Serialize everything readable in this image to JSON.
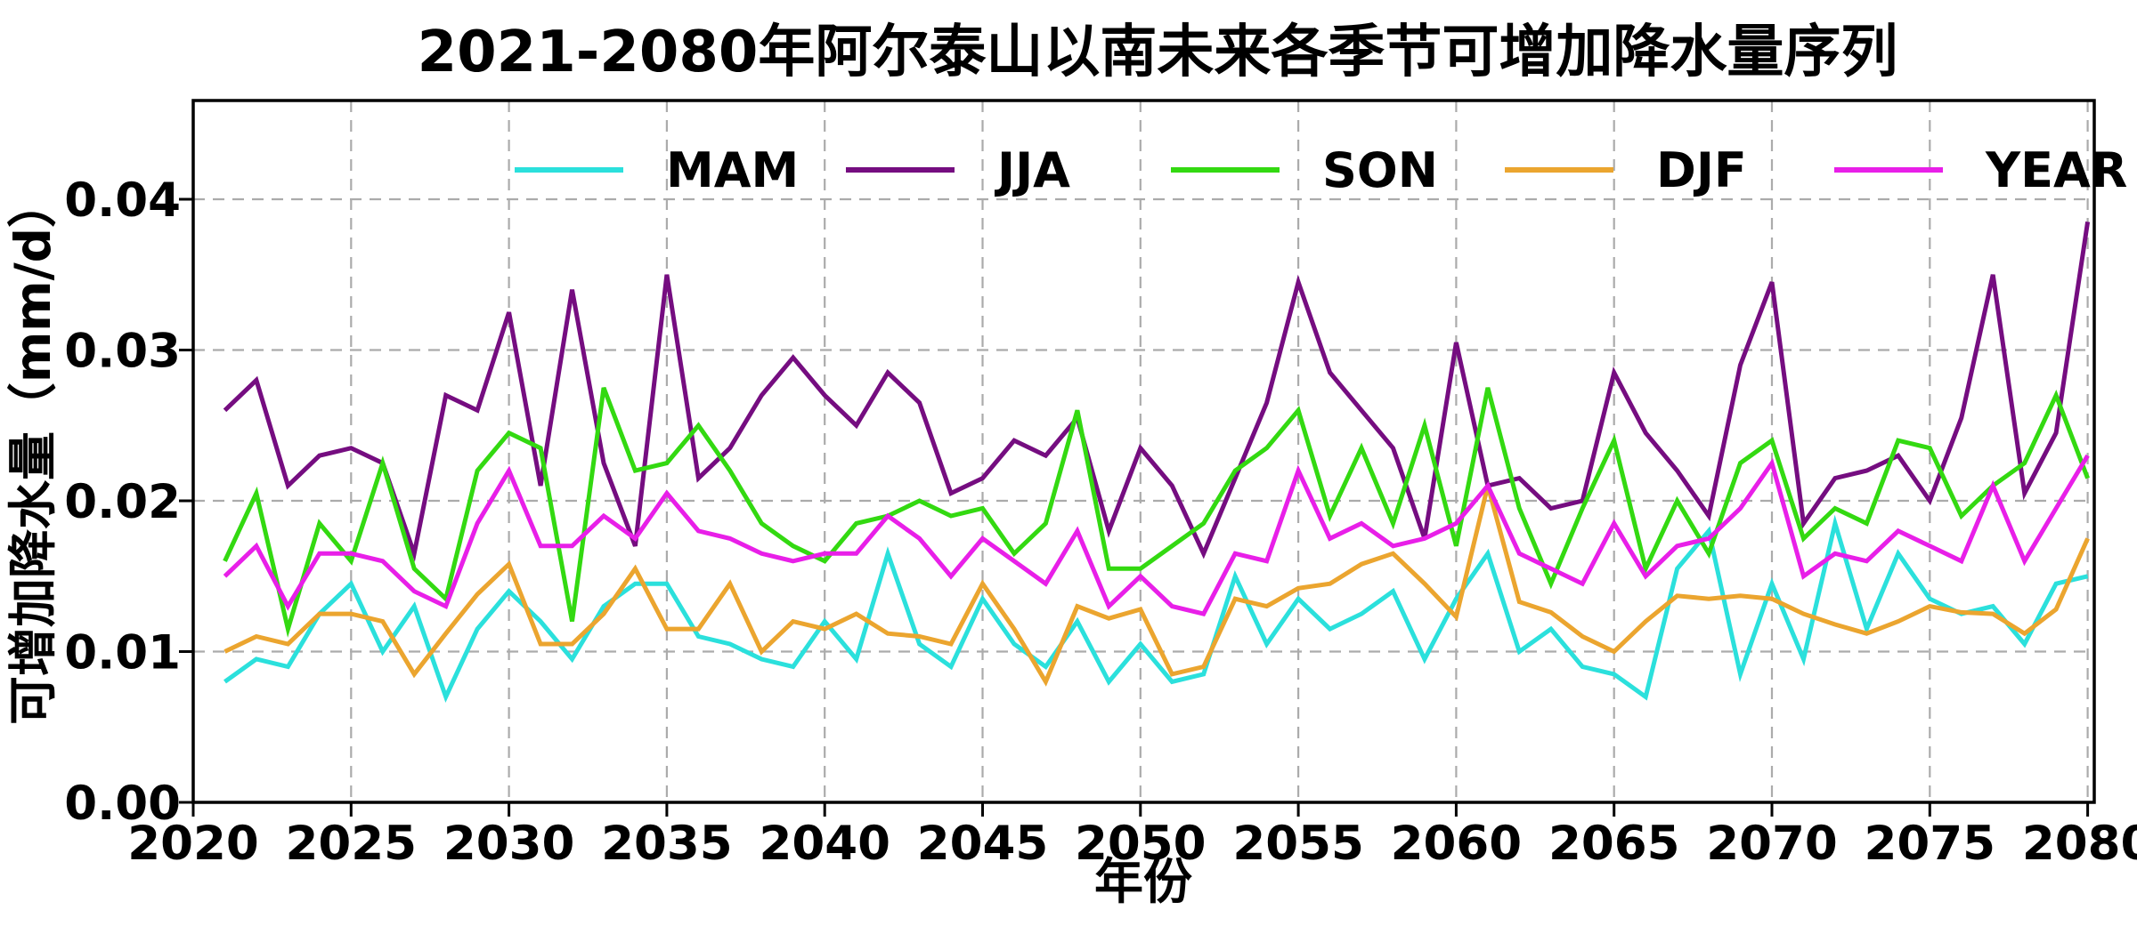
{
  "title": "2021-2080年阿尔泰山以南未来各季节可增加降水量序列",
  "axes": {
    "xlabel": "年份",
    "ylabel": "可增加降水量（mm/d）"
  },
  "colors": {
    "grid": "#ababab",
    "frame": "#000000",
    "background": "#ffffff"
  },
  "chart_data": {
    "type": "line",
    "title": "2021-2080年阿尔泰山以南未来各季节可增加降水量序列",
    "xlabel": "年份",
    "ylabel": "可增加降水量（mm/d）",
    "grid": "dashed",
    "legend_position": "top-inside-horizontal",
    "xlim": [
      2020,
      2080.3
    ],
    "ylim": [
      0,
      0.0466
    ],
    "xticks": [
      2020,
      2025,
      2030,
      2035,
      2040,
      2045,
      2050,
      2055,
      2060,
      2065,
      2070,
      2075,
      2080
    ],
    "ytick_values": [
      0.0,
      0.01,
      0.02,
      0.03,
      0.04
    ],
    "ytick_labels": [
      "0.00",
      "0.01",
      "0.02",
      "0.03",
      "0.04"
    ],
    "x": [
      2021,
      2022,
      2023,
      2024,
      2025,
      2026,
      2027,
      2028,
      2029,
      2030,
      2031,
      2032,
      2033,
      2034,
      2035,
      2036,
      2037,
      2038,
      2039,
      2040,
      2041,
      2042,
      2043,
      2044,
      2045,
      2046,
      2047,
      2048,
      2049,
      2050,
      2051,
      2052,
      2053,
      2054,
      2055,
      2056,
      2057,
      2058,
      2059,
      2060,
      2061,
      2062,
      2063,
      2064,
      2065,
      2066,
      2067,
      2068,
      2069,
      2070,
      2071,
      2072,
      2073,
      2074,
      2075,
      2076,
      2077,
      2078,
      2079,
      2080
    ],
    "series": [
      {
        "name": "MAM",
        "color": "#2BE0DC",
        "values": [
          0.008,
          0.0095,
          0.009,
          0.0125,
          0.0145,
          0.01,
          0.013,
          0.007,
          0.0115,
          0.014,
          0.012,
          0.0095,
          0.013,
          0.0145,
          0.0145,
          0.011,
          0.0105,
          0.0095,
          0.009,
          0.012,
          0.0095,
          0.0165,
          0.0105,
          0.009,
          0.0135,
          0.0105,
          0.009,
          0.012,
          0.008,
          0.0105,
          0.008,
          0.0085,
          0.015,
          0.0105,
          0.0135,
          0.0115,
          0.0125,
          0.014,
          0.0095,
          0.0135,
          0.0165,
          0.01,
          0.0115,
          0.009,
          0.0085,
          0.007,
          0.0155,
          0.018,
          0.0085,
          0.0145,
          0.0095,
          0.0185,
          0.0115,
          0.0165,
          0.0135,
          0.0125,
          0.013,
          0.0105,
          0.0145,
          0.015
        ]
      },
      {
        "name": "JJA",
        "color": "#750D80",
        "values": [
          0.026,
          0.028,
          0.021,
          0.023,
          0.0235,
          0.0225,
          0.0165,
          0.027,
          0.026,
          0.0325,
          0.021,
          0.034,
          0.0225,
          0.017,
          0.035,
          0.0215,
          0.0235,
          0.027,
          0.0295,
          0.027,
          0.025,
          0.0285,
          0.0265,
          0.0205,
          0.0215,
          0.024,
          0.023,
          0.0255,
          0.018,
          0.0235,
          0.021,
          0.0165,
          0.0215,
          0.0265,
          0.0345,
          0.0285,
          0.026,
          0.0235,
          0.0175,
          0.0305,
          0.021,
          0.0215,
          0.0195,
          0.02,
          0.0285,
          0.0245,
          0.022,
          0.019,
          0.029,
          0.0345,
          0.0185,
          0.0215,
          0.022,
          0.023,
          0.02,
          0.0255,
          0.035,
          0.0205,
          0.0245,
          0.0385
        ]
      },
      {
        "name": "SON",
        "color": "#33D911",
        "values": [
          0.016,
          0.0205,
          0.0115,
          0.0185,
          0.016,
          0.0225,
          0.0155,
          0.0135,
          0.022,
          0.0245,
          0.0235,
          0.012,
          0.0275,
          0.022,
          0.0225,
          0.025,
          0.022,
          0.0185,
          0.017,
          0.016,
          0.0185,
          0.019,
          0.02,
          0.019,
          0.0195,
          0.0165,
          0.0185,
          0.026,
          0.0155,
          0.0155,
          0.017,
          0.0185,
          0.022,
          0.0235,
          0.026,
          0.019,
          0.0235,
          0.0185,
          0.025,
          0.017,
          0.0275,
          0.0195,
          0.0145,
          0.0195,
          0.024,
          0.0155,
          0.02,
          0.0165,
          0.0225,
          0.024,
          0.0175,
          0.0195,
          0.0185,
          0.024,
          0.0235,
          0.019,
          0.021,
          0.0225,
          0.027,
          0.0215
        ]
      },
      {
        "name": "DJF",
        "color": "#EBA52F",
        "values": [
          0.01,
          0.011,
          0.0105,
          0.0125,
          0.0125,
          0.012,
          0.0085,
          0.0112,
          0.0138,
          0.0158,
          0.0105,
          0.0105,
          0.0125,
          0.0155,
          0.0115,
          0.0115,
          0.0145,
          0.01,
          0.012,
          0.0115,
          0.0125,
          0.0112,
          0.011,
          0.0105,
          0.0145,
          0.0115,
          0.008,
          0.013,
          0.0122,
          0.0128,
          0.0085,
          0.009,
          0.0135,
          0.013,
          0.0142,
          0.0145,
          0.0158,
          0.0165,
          0.0145,
          0.0123,
          0.021,
          0.0133,
          0.0126,
          0.011,
          0.01,
          0.012,
          0.0137,
          0.0135,
          0.0137,
          0.0135,
          0.0125,
          0.0118,
          0.0112,
          0.012,
          0.013,
          0.0126,
          0.0125,
          0.0112,
          0.0128,
          0.0175
        ]
      },
      {
        "name": "YEAR",
        "color": "#E81FE8",
        "values": [
          0.015,
          0.017,
          0.013,
          0.0165,
          0.0165,
          0.016,
          0.014,
          0.013,
          0.0185,
          0.022,
          0.017,
          0.017,
          0.019,
          0.0175,
          0.0205,
          0.018,
          0.0175,
          0.0165,
          0.016,
          0.0165,
          0.0165,
          0.019,
          0.0175,
          0.015,
          0.0175,
          0.016,
          0.0145,
          0.018,
          0.013,
          0.015,
          0.013,
          0.0125,
          0.0165,
          0.016,
          0.022,
          0.0175,
          0.0185,
          0.017,
          0.0175,
          0.0185,
          0.021,
          0.0165,
          0.0155,
          0.0145,
          0.0185,
          0.015,
          0.017,
          0.0175,
          0.0195,
          0.0225,
          0.015,
          0.0165,
          0.016,
          0.018,
          0.017,
          0.016,
          0.021,
          0.016,
          0.0195,
          0.023
        ]
      }
    ]
  }
}
